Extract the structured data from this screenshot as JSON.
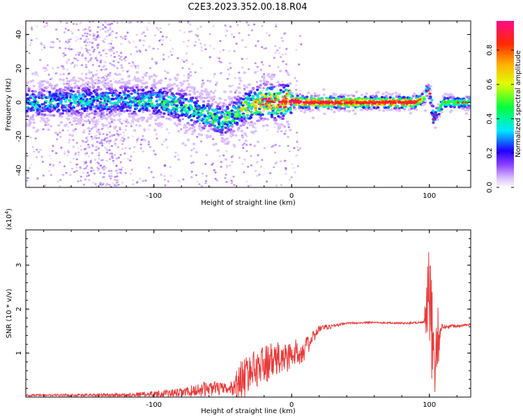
{
  "title": "C2E3.2023.352.00.18.R04",
  "chart_data": [
    {
      "type": "heatmap",
      "title": "C2E3.2023.352.00.18.R04",
      "xlabel": "Height of straight line (km)",
      "ylabel": "Frequency (Hz)",
      "xlim": [
        -193,
        130
      ],
      "ylim": [
        -50,
        48
      ],
      "x_ticks": [
        -100,
        0,
        100
      ],
      "y_ticks": [
        -40,
        -20,
        0,
        20,
        40
      ],
      "colorbar": {
        "label": "Normalized spectral amplitude",
        "range": [
          0,
          0.97
        ],
        "ticks": [
          0.0,
          0.2,
          0.4,
          0.6,
          0.8
        ],
        "tick_labels": [
          "0.0",
          "0.2",
          "0.4",
          "0.6",
          "0.8"
        ]
      },
      "ridge": {
        "x": [
          -193,
          -150,
          -120,
          -100,
          -80,
          -60,
          -50,
          -40,
          -30,
          -20,
          -10,
          0,
          10,
          50,
          90,
          97,
          99,
          101,
          103,
          110,
          130
        ],
        "y": [
          0,
          1,
          1,
          1,
          -2,
          -8,
          -11,
          -6,
          -2,
          1,
          0,
          1,
          0,
          0,
          0,
          3,
          8,
          4,
          -10,
          0,
          0
        ],
        "peak_amplitude": [
          0.35,
          0.35,
          0.35,
          0.38,
          0.42,
          0.45,
          0.45,
          0.5,
          0.65,
          0.8,
          0.95,
          0.95,
          0.95,
          0.9,
          0.9,
          0.5,
          0.4,
          0.4,
          0.3,
          0.5,
          0.5
        ]
      }
    },
    {
      "type": "line",
      "xlabel": "Height of straight line (km)",
      "ylabel": "SNR (10 * v/v)",
      "y_multiplier": "(x10",
      "y_multiplier_exp": "4",
      "y_multiplier_close": ")",
      "xlim": [
        -193,
        130
      ],
      "ylim": [
        0,
        3.8
      ],
      "x_ticks": [
        -100,
        0,
        100
      ],
      "y_ticks": [
        1,
        2,
        3
      ],
      "color": "#e83b3b",
      "envelope": {
        "x": [
          -193,
          -120,
          -80,
          -60,
          -45,
          -36,
          -30,
          -20,
          -10,
          0,
          10,
          20,
          40,
          60,
          80,
          96,
          98,
          100,
          102,
          104,
          106,
          108,
          110,
          130
        ],
        "mean": [
          0.04,
          0.05,
          0.1,
          0.2,
          0.18,
          0.4,
          0.6,
          0.75,
          0.85,
          0.95,
          1.1,
          1.55,
          1.68,
          1.7,
          1.68,
          1.7,
          1.9,
          2.2,
          1.3,
          1.2,
          1.3,
          1.5,
          1.6,
          1.65
        ],
        "amplitude": [
          0.02,
          0.04,
          0.1,
          0.18,
          0.12,
          0.5,
          0.4,
          0.45,
          0.4,
          0.35,
          0.25,
          0.08,
          0.02,
          0.02,
          0.02,
          0.03,
          0.8,
          1.5,
          1.2,
          1.3,
          0.8,
          0.2,
          0.05,
          0.02
        ]
      }
    }
  ]
}
